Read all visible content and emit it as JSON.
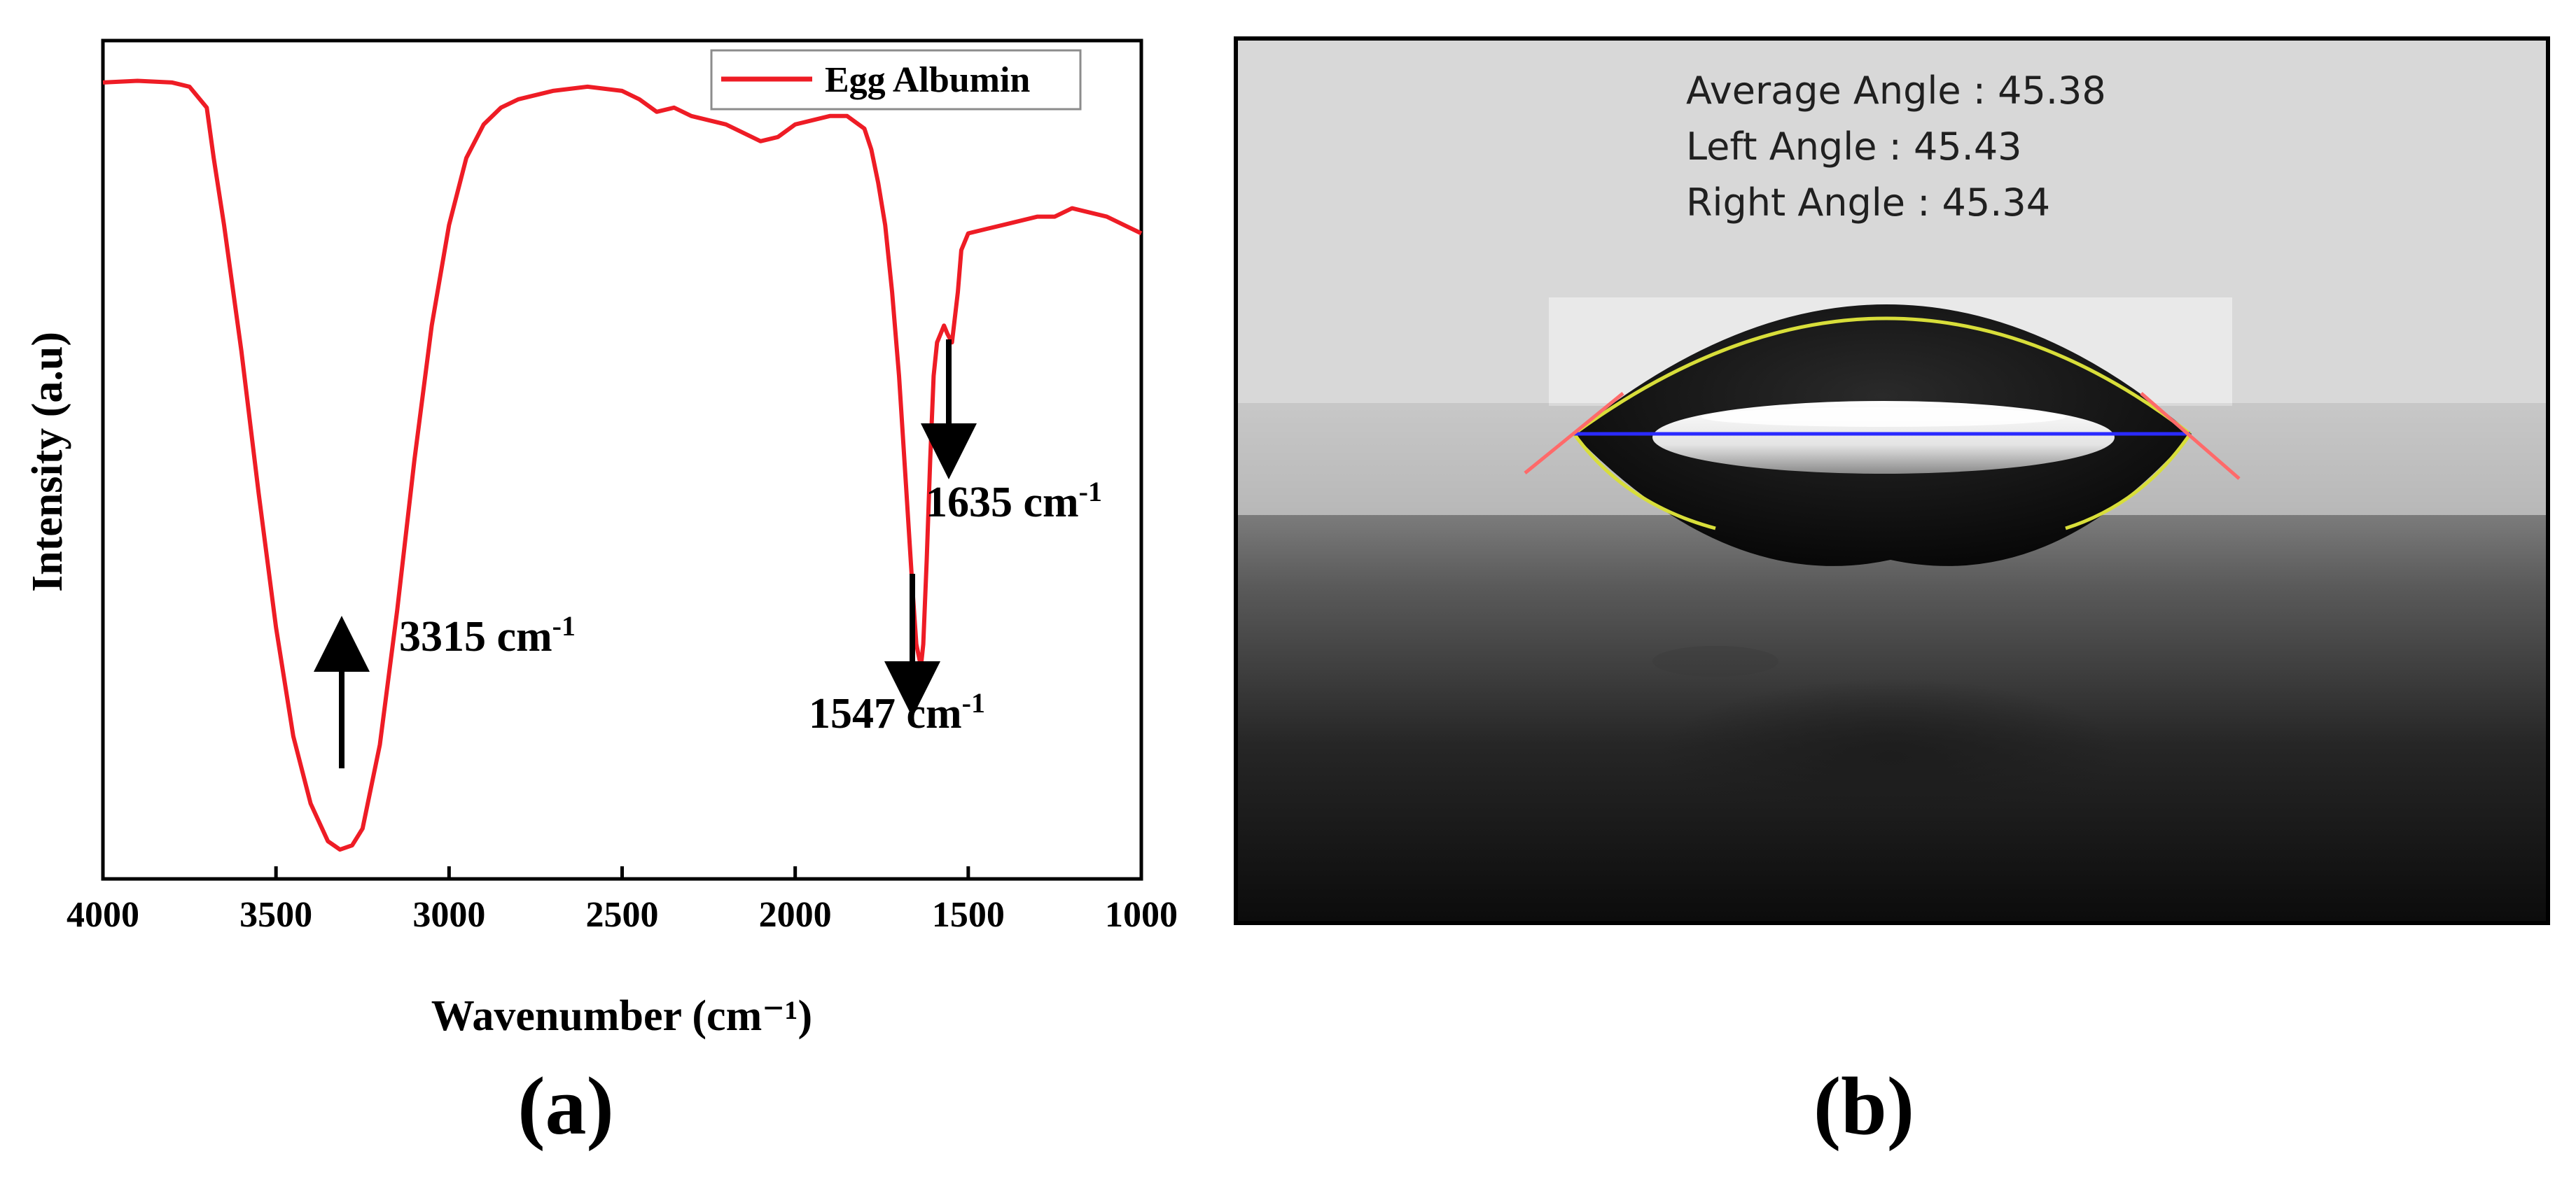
{
  "panel_a": {
    "caption": "(a)",
    "chart_data": {
      "type": "line",
      "title": "",
      "xlabel": "Wavenumber (cm⁻¹)",
      "ylabel": "Intensity (a.u)",
      "xlim": [
        4000,
        1000
      ],
      "ylim": [
        0,
        1
      ],
      "x_reversed": true,
      "grid": false,
      "legend_position": "top-right",
      "xticks": [
        4000,
        3500,
        3000,
        2500,
        2000,
        1500,
        1000
      ],
      "xtick_labels": [
        "4000",
        "3500",
        "3000",
        "2500",
        "2000",
        "1500",
        "1000"
      ],
      "series": [
        {
          "name": "Egg Albumin",
          "color": "#ee1c25",
          "x": [
            4000,
            3900,
            3800,
            3750,
            3700,
            3680,
            3650,
            3600,
            3550,
            3500,
            3450,
            3400,
            3350,
            3315,
            3280,
            3250,
            3200,
            3150,
            3100,
            3050,
            3000,
            2950,
            2900,
            2850,
            2800,
            2700,
            2600,
            2500,
            2450,
            2400,
            2350,
            2300,
            2250,
            2200,
            2150,
            2100,
            2050,
            2000,
            1950,
            1900,
            1850,
            1800,
            1780,
            1760,
            1740,
            1720,
            1700,
            1680,
            1660,
            1650,
            1640,
            1635,
            1630,
            1620,
            1610,
            1600,
            1590,
            1580,
            1570,
            1560,
            1547,
            1530,
            1520,
            1500,
            1450,
            1400,
            1350,
            1300,
            1250,
            1200,
            1150,
            1100,
            1050,
            1000
          ],
          "y": [
            0.95,
            0.952,
            0.95,
            0.945,
            0.92,
            0.86,
            0.78,
            0.63,
            0.46,
            0.3,
            0.17,
            0.09,
            0.045,
            0.035,
            0.04,
            0.06,
            0.16,
            0.32,
            0.5,
            0.66,
            0.78,
            0.86,
            0.9,
            0.92,
            0.93,
            0.94,
            0.945,
            0.94,
            0.93,
            0.915,
            0.92,
            0.91,
            0.905,
            0.9,
            0.89,
            0.88,
            0.885,
            0.9,
            0.905,
            0.91,
            0.91,
            0.895,
            0.87,
            0.83,
            0.78,
            0.7,
            0.6,
            0.47,
            0.34,
            0.28,
            0.26,
            0.26,
            0.28,
            0.38,
            0.5,
            0.6,
            0.64,
            0.65,
            0.66,
            0.65,
            0.64,
            0.7,
            0.75,
            0.77,
            0.775,
            0.78,
            0.785,
            0.79,
            0.79,
            0.8,
            0.795,
            0.79,
            0.78,
            0.77
          ]
        }
      ],
      "annotations": [
        {
          "base": "3315 cm",
          "sup": "-1",
          "peak_x": 3315,
          "arrow": "up"
        },
        {
          "base": "1547 cm",
          "sup": "-1",
          "peak_x": 1547,
          "arrow": "down"
        },
        {
          "base": "1635 cm",
          "sup": "-1",
          "peak_x": 1635,
          "arrow": "down"
        }
      ]
    }
  },
  "panel_b": {
    "caption": "(b)",
    "readings": {
      "average": "Average Angle : 45.38",
      "left": "Left Angle : 45.43",
      "right": "Right Angle : 45.34"
    },
    "colors": {
      "baseline": "#2a2aff",
      "tangent": "#ff6a6a",
      "fit": "#d8de3a"
    }
  }
}
